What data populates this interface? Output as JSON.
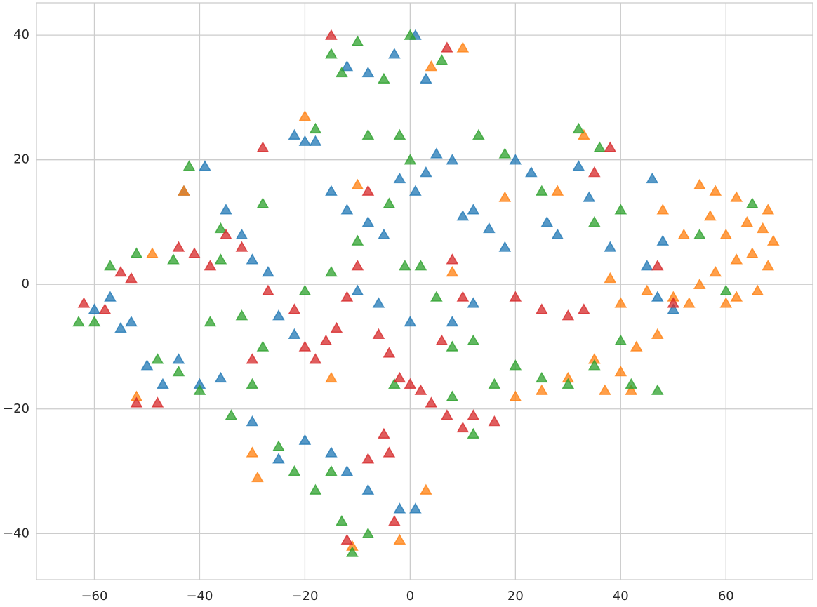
{
  "chart_data": {
    "type": "scatter",
    "grid": true,
    "marker": "triangle",
    "alpha": 0.75,
    "xlim": [
      -71,
      76.5
    ],
    "ylim": [
      -47.4,
      45.2
    ],
    "xticks": [
      {
        "value": -60,
        "label": "−60"
      },
      {
        "value": -40,
        "label": "−40"
      },
      {
        "value": -20,
        "label": "−20"
      },
      0,
      20,
      40,
      60
    ],
    "yticks": [
      {
        "value": -40,
        "label": "−40"
      },
      {
        "value": -20,
        "label": "−20"
      },
      0,
      20,
      40
    ],
    "series": [
      {
        "color": "#1f77b4",
        "x": [
          -60,
          -57,
          -55,
          -53,
          -50,
          -47,
          -44,
          -40,
          -36,
          -39,
          -43,
          -35,
          -32,
          -30,
          -27,
          -25,
          -22,
          -20,
          -22,
          -18,
          -15,
          -12,
          -8,
          -5,
          -2,
          1,
          3,
          5,
          8,
          10,
          12,
          15,
          18,
          20,
          23,
          26,
          28,
          32,
          34,
          38,
          45,
          47,
          48,
          50,
          46,
          -30,
          -25,
          -20,
          -15,
          -12,
          -8,
          -2,
          1,
          -12,
          -8,
          -3,
          1,
          3,
          -6,
          -10,
          0,
          8,
          12
        ],
        "values": [
          -4,
          -2,
          -7,
          -6,
          -13,
          -16,
          -12,
          -16,
          -15,
          19,
          15,
          12,
          8,
          4,
          2,
          -5,
          -8,
          23,
          24,
          23,
          15,
          12,
          10,
          8,
          17,
          15,
          18,
          21,
          20,
          11,
          12,
          9,
          6,
          20,
          18,
          10,
          8,
          19,
          14,
          6,
          3,
          -2,
          7,
          -4,
          17,
          -22,
          -28,
          -25,
          -27,
          -30,
          -33,
          -36,
          -36,
          35,
          34,
          37,
          40,
          33,
          -3,
          -1,
          -6,
          -6,
          -3
        ]
      },
      {
        "color": "#ff7f0e",
        "x": [
          55,
          58,
          62,
          64,
          67,
          69,
          68,
          65,
          62,
          60,
          58,
          55,
          53,
          50,
          47,
          43,
          40,
          37,
          42,
          35,
          30,
          25,
          20,
          45,
          40,
          38,
          62,
          60,
          52,
          57,
          68,
          66,
          33,
          28,
          18,
          10,
          4,
          -49,
          -52,
          -43,
          -29,
          -15,
          -10,
          -20,
          8,
          3,
          -11,
          -2,
          -30,
          48
        ],
        "values": [
          16,
          15,
          14,
          10,
          9,
          7,
          3,
          5,
          4,
          8,
          2,
          0,
          -3,
          -2,
          -8,
          -10,
          -14,
          -17,
          -17,
          -12,
          -15,
          -17,
          -18,
          -1,
          -3,
          1,
          -2,
          -3,
          8,
          11,
          12,
          -1,
          24,
          15,
          14,
          38,
          35,
          5,
          -18,
          15,
          -31,
          -15,
          16,
          27,
          2,
          -33,
          -42,
          -41,
          -27,
          12
        ]
      },
      {
        "color": "#2ca02c",
        "x": [
          -63,
          -60,
          -57,
          -52,
          -48,
          -44,
          -40,
          -42,
          -45,
          -38,
          -34,
          -30,
          -25,
          -22,
          -18,
          -15,
          -13,
          -11,
          -8,
          -13,
          -15,
          -10,
          -5,
          0,
          6,
          -8,
          -2,
          0,
          -4,
          -10,
          -15,
          -20,
          -28,
          -32,
          -36,
          -1,
          2,
          5,
          8,
          12,
          16,
          20,
          25,
          30,
          35,
          40,
          42,
          47,
          13,
          18,
          25,
          32,
          36,
          35,
          40,
          55,
          60,
          65,
          12,
          -3,
          8,
          -18,
          -28,
          -36
        ],
        "values": [
          -6,
          -6,
          3,
          5,
          -12,
          -14,
          -17,
          19,
          4,
          -6,
          -21,
          -16,
          -26,
          -30,
          -33,
          -30,
          -38,
          -43,
          -40,
          34,
          37,
          39,
          33,
          40,
          36,
          24,
          24,
          20,
          13,
          7,
          2,
          -1,
          -10,
          -5,
          4,
          3,
          3,
          -2,
          -10,
          -9,
          -16,
          -13,
          -15,
          -16,
          -13,
          -9,
          -16,
          -17,
          24,
          21,
          15,
          25,
          22,
          10,
          12,
          8,
          -1,
          13,
          -24,
          -16,
          -18,
          25,
          13,
          9
        ]
      },
      {
        "color": "#d62728",
        "x": [
          -62,
          -58,
          -55,
          -53,
          -52,
          -48,
          -44,
          -41,
          -38,
          -35,
          -32,
          -28,
          -27,
          -22,
          -20,
          -18,
          -14,
          -12,
          -8,
          -6,
          -4,
          -2,
          0,
          2,
          4,
          7,
          10,
          12,
          16,
          -5,
          -4,
          -8,
          -12,
          -3,
          6,
          8,
          10,
          20,
          25,
          30,
          33,
          38,
          35,
          47,
          50,
          -15,
          7,
          -10,
          -16,
          -30
        ],
        "values": [
          -3,
          -4,
          2,
          1,
          -19,
          -19,
          6,
          5,
          3,
          8,
          6,
          22,
          -1,
          -4,
          -10,
          -12,
          -7,
          -2,
          15,
          -8,
          -11,
          -15,
          -16,
          -17,
          -19,
          -21,
          -23,
          -21,
          -22,
          -24,
          -27,
          -28,
          -41,
          -38,
          -9,
          4,
          -2,
          -2,
          -4,
          -5,
          -4,
          22,
          18,
          3,
          -3,
          40,
          38,
          3,
          -9,
          -12
        ]
      }
    ]
  }
}
